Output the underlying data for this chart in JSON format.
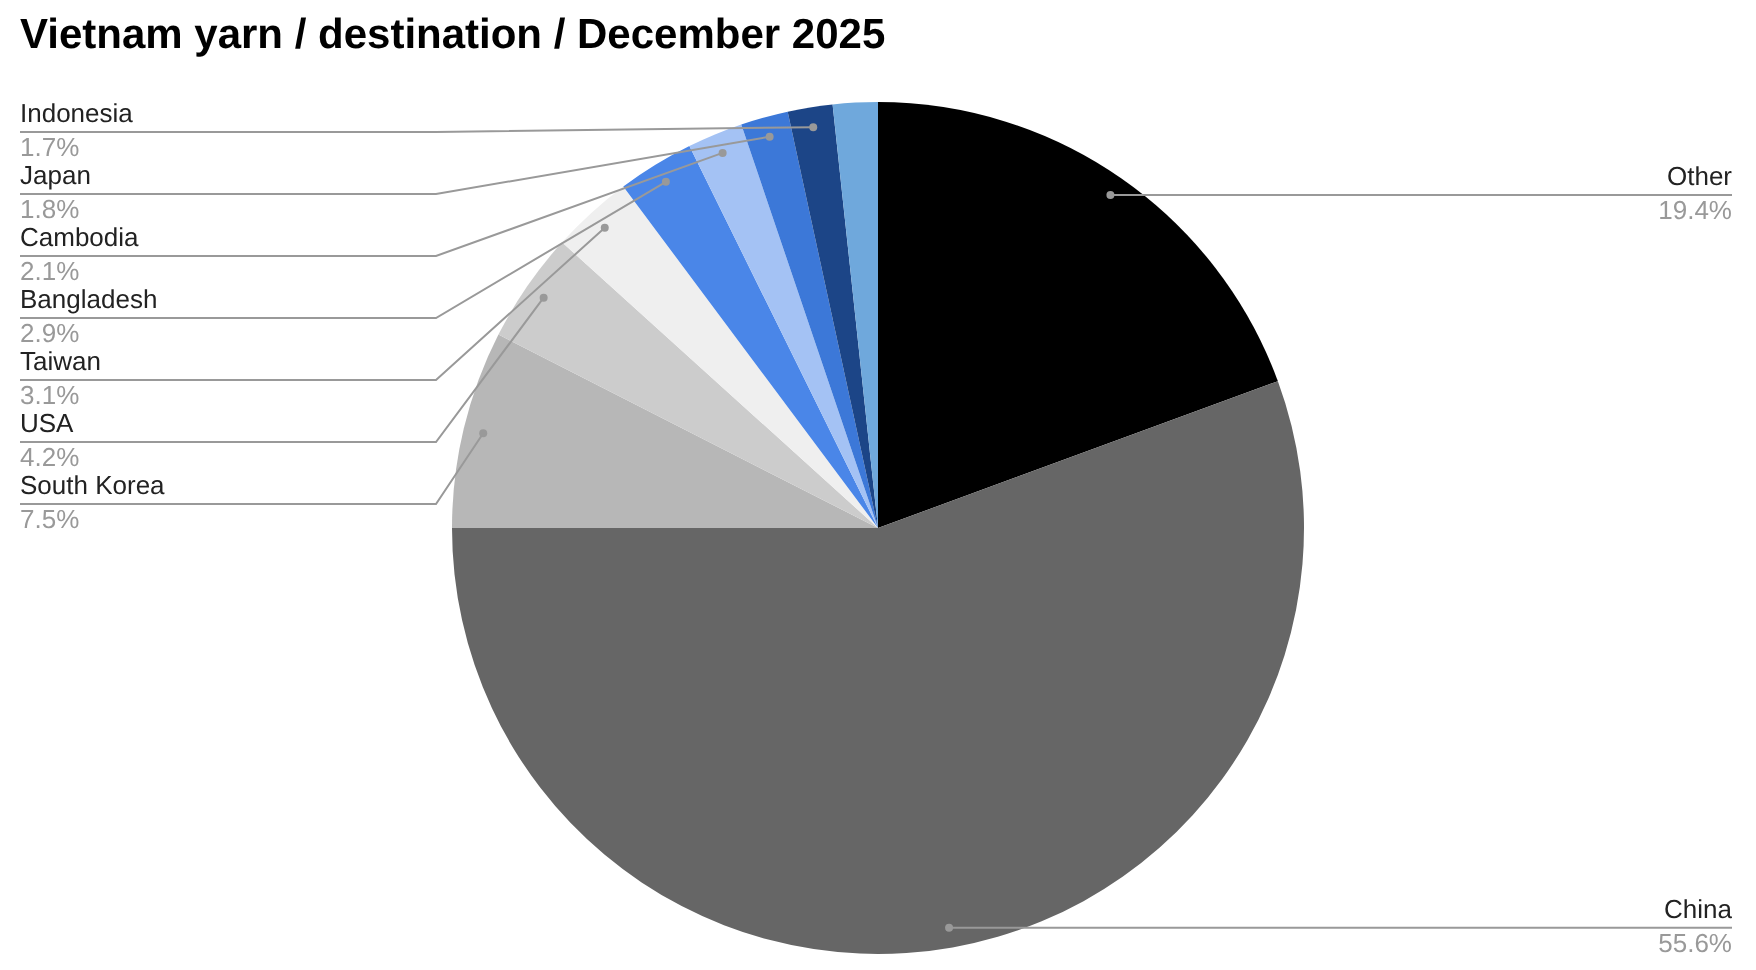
{
  "chart_data": {
    "type": "pie",
    "title": "Vietnam yarn / destination / December 2025",
    "categories": [
      "Other",
      "China",
      "South Korea",
      "USA",
      "Taiwan",
      "Bangladesh",
      "Cambodia",
      "Japan",
      "Indonesia",
      null
    ],
    "values": [
      19.4,
      55.6,
      7.5,
      4.2,
      3.1,
      2.9,
      2.1,
      1.8,
      1.7,
      1.7
    ],
    "value_labels": [
      "19.4%",
      "55.6%",
      "7.5%",
      "4.2%",
      "3.1%",
      "2.9%",
      "2.1%",
      "1.8%",
      "1.7%",
      null
    ],
    "colors": [
      "#000000",
      "#666666",
      "#b7b7b7",
      "#cccccc",
      "#efefef",
      "#4a86e8",
      "#a4c2f4",
      "#3c78d8",
      "#1c4587",
      "#6fa8dc"
    ],
    "legend": false
  }
}
